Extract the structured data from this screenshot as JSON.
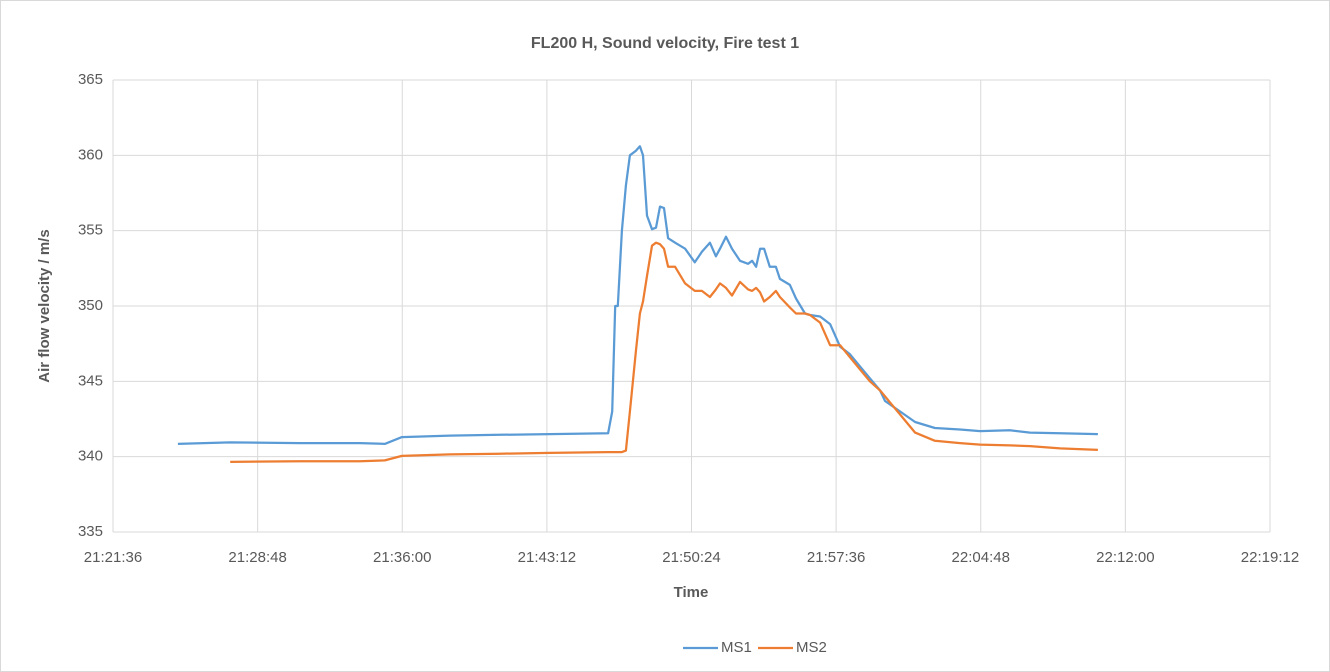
{
  "chart_data": {
    "type": "line",
    "title": "FL200 H, Sound velocity, Fire test 1",
    "xlabel": "Time",
    "ylabel": "Air flow velocity / m/s",
    "x": [
      "21:24:50",
      "21:27:26",
      "21:30:55",
      "21:33:54",
      "21:35:08",
      "21:35:59",
      "21:38:23",
      "21:40:52",
      "21:43:21",
      "21:46:15",
      "21:46:27",
      "21:46:36",
      "21:46:44",
      "21:46:56",
      "21:47:08",
      "21:47:20",
      "21:47:38",
      "21:47:50",
      "21:47:59",
      "21:48:11",
      "21:48:26",
      "21:48:38",
      "21:48:50",
      "21:49:02",
      "21:49:14",
      "21:49:35",
      "21:50:05",
      "21:50:34",
      "21:50:55",
      "21:51:19",
      "21:51:37",
      "21:51:49",
      "21:52:07",
      "21:52:25",
      "21:52:49",
      "21:53:13",
      "21:53:25",
      "21:53:37",
      "21:53:49",
      "21:54:01",
      "21:54:18",
      "21:54:36",
      "21:54:48",
      "21:55:18",
      "21:55:36",
      "21:56:03",
      "21:56:18",
      "21:56:48",
      "21:57:18",
      "21:57:48",
      "21:58:17",
      "21:58:47",
      "21:59:17",
      "21:59:47",
      "22:00:02",
      "22:00:47",
      "22:01:32",
      "22:02:31",
      "22:03:46",
      "22:04:46",
      "22:06:15",
      "22:07:15",
      "22:08:45",
      "22:10:38"
    ],
    "series": [
      {
        "name": "MS1",
        "color": "#5b9bd5",
        "values": [
          340.85,
          340.95,
          340.9,
          340.9,
          340.85,
          341.3,
          341.4,
          341.45,
          341.5,
          341.55,
          343,
          350,
          350,
          355,
          358,
          360,
          360.3,
          360.6,
          360,
          356,
          355.1,
          355.2,
          356.6,
          356.5,
          354.5,
          354.2,
          353.8,
          352.9,
          353.6,
          354.2,
          353.3,
          353.8,
          354.6,
          353.8,
          353,
          352.8,
          353,
          352.6,
          353.8,
          353.8,
          352.6,
          352.6,
          351.8,
          351.4,
          350.5,
          349.5,
          349.4,
          349.3,
          348.8,
          347.3,
          346.8,
          346,
          345.2,
          344.4,
          343.7,
          343,
          342.3,
          341.9,
          341.8,
          341.7,
          341.75,
          341.6,
          341.55,
          341.5
        ]
      },
      {
        "name": "MS2",
        "color": "#ed7d31",
        "values": [
          null,
          339.65,
          339.7,
          339.7,
          339.75,
          340.05,
          340.15,
          340.2,
          340.25,
          340.3,
          340.3,
          340.3,
          340.3,
          340.3,
          340.4,
          343,
          347,
          349.5,
          350.3,
          352,
          354,
          354.2,
          354.1,
          353.8,
          352.6,
          352.6,
          351.5,
          351,
          351,
          350.6,
          351.1,
          351.5,
          351.2,
          350.7,
          351.6,
          351.1,
          351,
          351.2,
          350.9,
          350.3,
          350.6,
          351,
          350.6,
          349.9,
          349.5,
          349.5,
          349.4,
          348.9,
          347.4,
          347.4,
          346.6,
          345.8,
          345,
          344.4,
          344,
          342.8,
          341.6,
          341.05,
          340.9,
          340.8,
          340.75,
          340.7,
          340.55,
          340.45
        ]
      }
    ],
    "xlim": [
      "21:21:36",
      "22:19:12"
    ],
    "xticks": [
      "21:21:36",
      "21:28:48",
      "21:36:00",
      "21:43:12",
      "21:50:24",
      "21:57:36",
      "22:04:48",
      "22:12:00",
      "22:19:12"
    ],
    "ylim": [
      335,
      365
    ],
    "yticks": [
      335,
      340,
      345,
      350,
      355,
      360,
      365
    ],
    "grid": true,
    "legend": "bottom"
  }
}
